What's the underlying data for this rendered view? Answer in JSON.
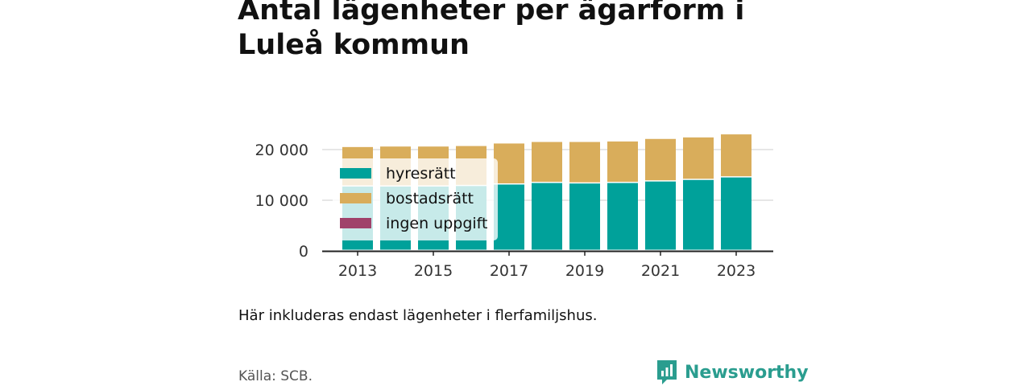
{
  "title": "Antal lägenheter per ägarform i Luleå kommun",
  "note": "Här inkluderas endast lägenheter i flerfamiljshus.",
  "source": "Källa: SCB.",
  "brand": "Newsworthy",
  "colors": {
    "hyresratt": "#00a19a",
    "bostadsratt": "#d9ad5b",
    "ingen_uppgift": "#a0426a",
    "brand": "#2a9d8f"
  },
  "chart_data": {
    "type": "bar",
    "stacked": true,
    "categories": [
      "2013",
      "2014",
      "2015",
      "2016",
      "2017",
      "2018",
      "2019",
      "2020",
      "2021",
      "2022",
      "2023"
    ],
    "x_tick_labels": [
      "2013",
      "2015",
      "2017",
      "2019",
      "2021",
      "2023"
    ],
    "y_tick_labels": [
      "0",
      "10 000",
      "20 000"
    ],
    "ylim": [
      0,
      23000
    ],
    "grid": true,
    "legend_position": "top-left",
    "series": [
      {
        "name": "hyresrätt",
        "color": "#00a19a",
        "values": [
          12700,
          12700,
          12700,
          12800,
          13100,
          13400,
          13300,
          13400,
          13700,
          14000,
          14500
        ]
      },
      {
        "name": "bostadsrätt",
        "color": "#d9ad5b",
        "values": [
          7800,
          7900,
          7900,
          7900,
          8100,
          8100,
          8200,
          8200,
          8400,
          8400,
          8500
        ]
      },
      {
        "name": "ingen uppgift",
        "color": "#a0426a",
        "values": [
          0,
          0,
          0,
          0,
          0,
          0,
          0,
          0,
          0,
          0,
          0
        ]
      }
    ]
  }
}
